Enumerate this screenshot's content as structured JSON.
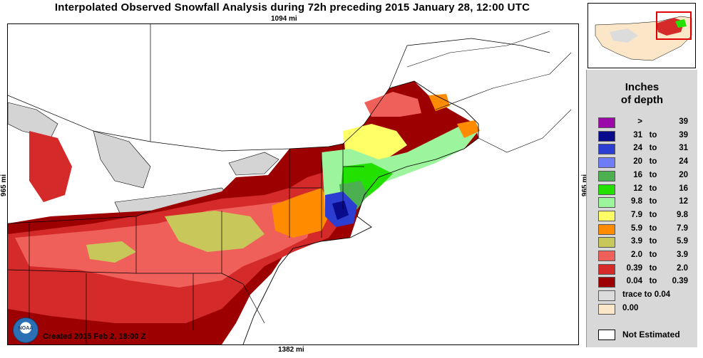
{
  "title": "Interpolated Observed Snowfall Analysis during 72h preceding 2015 January 28, 12:00 UTC",
  "scale": {
    "top": "1094 mi",
    "bottom": "1382 mi",
    "left": "965 mi",
    "right": "965 mi"
  },
  "credit": "Created 2015 Feb 2, 18:00 Z",
  "logo": {
    "text": "NOAA",
    "icon": "noaa-logo-icon"
  },
  "legend": {
    "title_line1": "Inches",
    "title_line2": "of depth",
    "items": [
      {
        "lo": ">",
        "mid": "",
        "hi": "39",
        "color": "#9b0aa8"
      },
      {
        "lo": "31",
        "mid": "to",
        "hi": "39",
        "color": "#0a0a8c"
      },
      {
        "lo": "24",
        "mid": "to",
        "hi": "31",
        "color": "#2c3ed2"
      },
      {
        "lo": "20",
        "mid": "to",
        "hi": "24",
        "color": "#6e7cf5"
      },
      {
        "lo": "16",
        "mid": "to",
        "hi": "20",
        "color": "#4caf50"
      },
      {
        "lo": "12",
        "mid": "to",
        "hi": "16",
        "color": "#22e000"
      },
      {
        "lo": "9.8",
        "mid": "to",
        "hi": "12",
        "color": "#9cf59c"
      },
      {
        "lo": "7.9",
        "mid": "to",
        "hi": "9.8",
        "color": "#ffff66"
      },
      {
        "lo": "5.9",
        "mid": "to",
        "hi": "7.9",
        "color": "#ff8c00"
      },
      {
        "lo": "3.9",
        "mid": "to",
        "hi": "5.9",
        "color": "#c8c85a"
      },
      {
        "lo": "2.0",
        "mid": "to",
        "hi": "3.9",
        "color": "#f0605a"
      },
      {
        "lo": "0.39",
        "mid": "to",
        "hi": "2.0",
        "color": "#d42a2a"
      },
      {
        "lo": "0.04",
        "mid": "to",
        "hi": "0.39",
        "color": "#9c0000"
      },
      {
        "full": "trace to  0.04",
        "color": "#dcdcdc"
      },
      {
        "full": "0.00",
        "color": "#fbe6c8"
      }
    ],
    "not_estimated": "Not Estimated"
  },
  "colors": {
    "land_none": "#ffffff",
    "lakes": "#d4d4d4",
    "inset_highlight": "#e00000"
  }
}
